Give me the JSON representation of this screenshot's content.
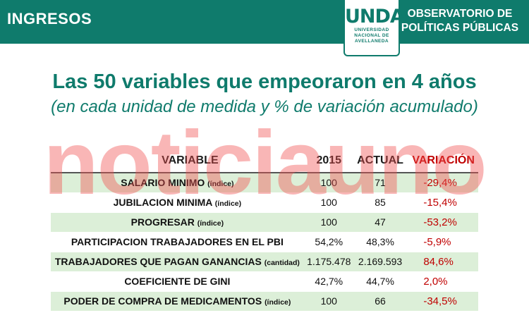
{
  "header": {
    "title": "INGRESOS",
    "logo_mark": "UNDAV",
    "logo_lines": [
      "UNIVERSIDAD",
      "NACIONAL DE",
      "AVELLANEDA"
    ],
    "observatory_line1": "OBSERVATORIO DE",
    "observatory_line2": "POLÍTICAS PÚBLICAS"
  },
  "title": "Las 50 variables que empeoraron en 4 años",
  "subtitle": "(en cada unidad de medida y % de variación acumulado)",
  "watermark": "noticiauno",
  "table": {
    "columns": [
      "VARIABLE",
      "2015",
      "ACTUAL",
      "VARIACIÓN"
    ],
    "rows": [
      {
        "name": "SALARIO MINIMO",
        "unit": "(índice)",
        "y2015": "100",
        "actual": "71",
        "variation": "-29,4%",
        "shaded": true
      },
      {
        "name": "JUBILACION MINIMA",
        "unit": "(índice)",
        "y2015": "100",
        "actual": "85",
        "variation": "-15,4%",
        "shaded": false
      },
      {
        "name": "PROGRESAR",
        "unit": "(índice)",
        "y2015": "100",
        "actual": "47",
        "variation": "-53,2%",
        "shaded": true
      },
      {
        "name": "PARTICIPACION TRABAJADORES EN EL PBI",
        "unit": "",
        "y2015": "54,2%",
        "actual": "48,3%",
        "variation": "-5,9%",
        "shaded": false
      },
      {
        "name": "TRABAJADORES QUE PAGAN GANANCIAS",
        "unit": "(cantidad)",
        "y2015": "1.175.478",
        "actual": "2.169.593",
        "variation": "84,6%",
        "shaded": true
      },
      {
        "name": "COEFICIENTE DE GINI",
        "unit": "",
        "y2015": "42,7%",
        "actual": "44,7%",
        "variation": "2,0%",
        "shaded": false
      },
      {
        "name": "PODER DE COMPRA DE MEDICAMENTOS",
        "unit": "(índice)",
        "y2015": "100",
        "actual": "66",
        "variation": "-34,5%",
        "shaded": true
      }
    ]
  },
  "colors": {
    "brand_teal": "#0f7b6c",
    "variation_red": "#c00000",
    "row_shade": "#dcefd8"
  }
}
